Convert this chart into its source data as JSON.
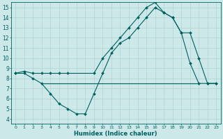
{
  "xlabel": "Humidex (Indice chaleur)",
  "xlim": [
    -0.5,
    23.5
  ],
  "ylim": [
    3.5,
    15.5
  ],
  "xticks": [
    0,
    1,
    2,
    3,
    4,
    5,
    6,
    7,
    8,
    9,
    10,
    11,
    12,
    13,
    14,
    15,
    16,
    17,
    18,
    19,
    20,
    21,
    22,
    23
  ],
  "yticks": [
    4,
    5,
    6,
    7,
    8,
    9,
    10,
    11,
    12,
    13,
    14,
    15
  ],
  "bg_color": "#cce8e8",
  "grid_color": "#aacccc",
  "line_color": "#006060",
  "line1_x": [
    0,
    1,
    2,
    3,
    4,
    5,
    6,
    7,
    8,
    9,
    10,
    11,
    12,
    13,
    14,
    15,
    16,
    17,
    18,
    19,
    20,
    21,
    22,
    23
  ],
  "line1_y": [
    8.5,
    8.5,
    8.0,
    7.5,
    6.5,
    5.5,
    5.0,
    4.5,
    4.5,
    6.5,
    8.5,
    10.5,
    11.5,
    12.0,
    13.0,
    14.0,
    15.0,
    14.5,
    14.0,
    12.5,
    9.5,
    7.5,
    7.5,
    7.5
  ],
  "line2_x": [
    3,
    4,
    5,
    6,
    7,
    8,
    9,
    10,
    11,
    12,
    13,
    14,
    15,
    16,
    17,
    18,
    19,
    20,
    21
  ],
  "line2_y": [
    7.5,
    7.5,
    7.5,
    7.5,
    7.5,
    7.5,
    7.5,
    7.5,
    7.5,
    7.5,
    7.5,
    7.5,
    7.5,
    7.5,
    7.5,
    7.5,
    7.5,
    7.5,
    7.5
  ],
  "line3_x": [
    0,
    1,
    2,
    3,
    4,
    5,
    6,
    9,
    10,
    11,
    12,
    13,
    14,
    15,
    16,
    17,
    18,
    19,
    20,
    21,
    22,
    23
  ],
  "line3_y": [
    8.5,
    8.7,
    8.5,
    8.5,
    8.5,
    8.5,
    8.5,
    8.5,
    10.0,
    11.0,
    12.0,
    13.0,
    14.0,
    15.0,
    15.5,
    14.5,
    14.0,
    12.5,
    12.5,
    10.0,
    7.5,
    7.5
  ]
}
